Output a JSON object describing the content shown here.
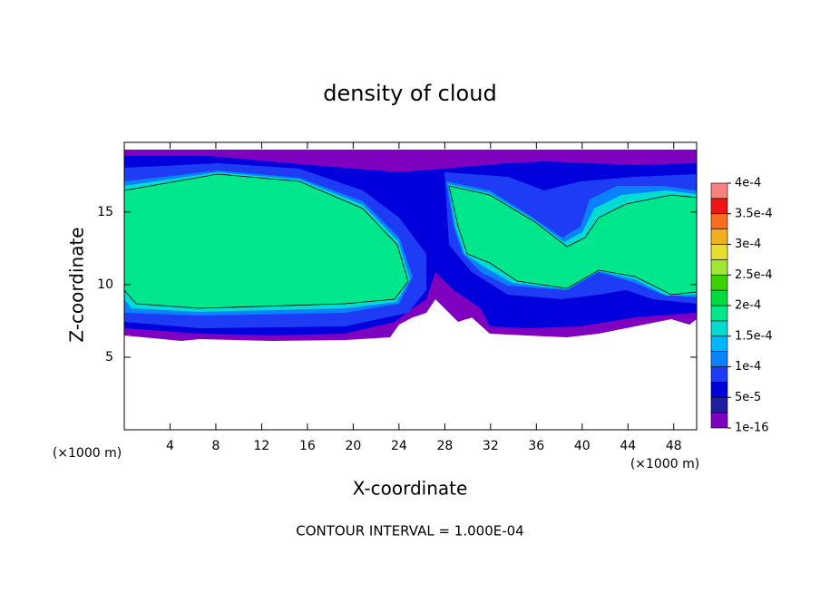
{
  "chart_data": {
    "type": "contour",
    "title": "density of cloud",
    "x_label": "X-coordinate",
    "y_label": "Z-coordinate",
    "x_unit": "(×1000 m)",
    "y_unit": "(×1000 m)",
    "footnote": "CONTOUR INTERVAL = 1.000E-04",
    "xlim": [
      0,
      50
    ],
    "ylim": [
      0,
      19.8
    ],
    "xticks": [
      4,
      8,
      12,
      16,
      20,
      24,
      28,
      32,
      36,
      40,
      44,
      48
    ],
    "yticks": [
      5,
      10,
      15
    ],
    "colorbar": {
      "levels": [
        {
          "value": 1e-16,
          "label": "1e-16"
        },
        {
          "value": 5e-05,
          "label": "5e-5"
        },
        {
          "value": 0.0001,
          "label": "1e-4"
        },
        {
          "value": 0.00015,
          "label": "1.5e-4"
        },
        {
          "value": 0.0002,
          "label": "2e-4"
        },
        {
          "value": 0.00025,
          "label": "2.5e-4"
        },
        {
          "value": 0.0003,
          "label": "3e-4"
        },
        {
          "value": 0.00035,
          "label": "3.5e-4"
        },
        {
          "value": 0.0004,
          "label": "4e-4"
        }
      ],
      "colors": [
        "#7f00bf",
        "#1e1e9e",
        "#0000dc",
        "#1f3cf5",
        "#0a82ff",
        "#00b4ff",
        "#00dcd2",
        "#00e68c",
        "#00dc3c",
        "#3cd200",
        "#a0e632",
        "#e6dc32",
        "#f0af1e",
        "#fa6e1e",
        "#f01414",
        "#fa8080"
      ]
    }
  }
}
